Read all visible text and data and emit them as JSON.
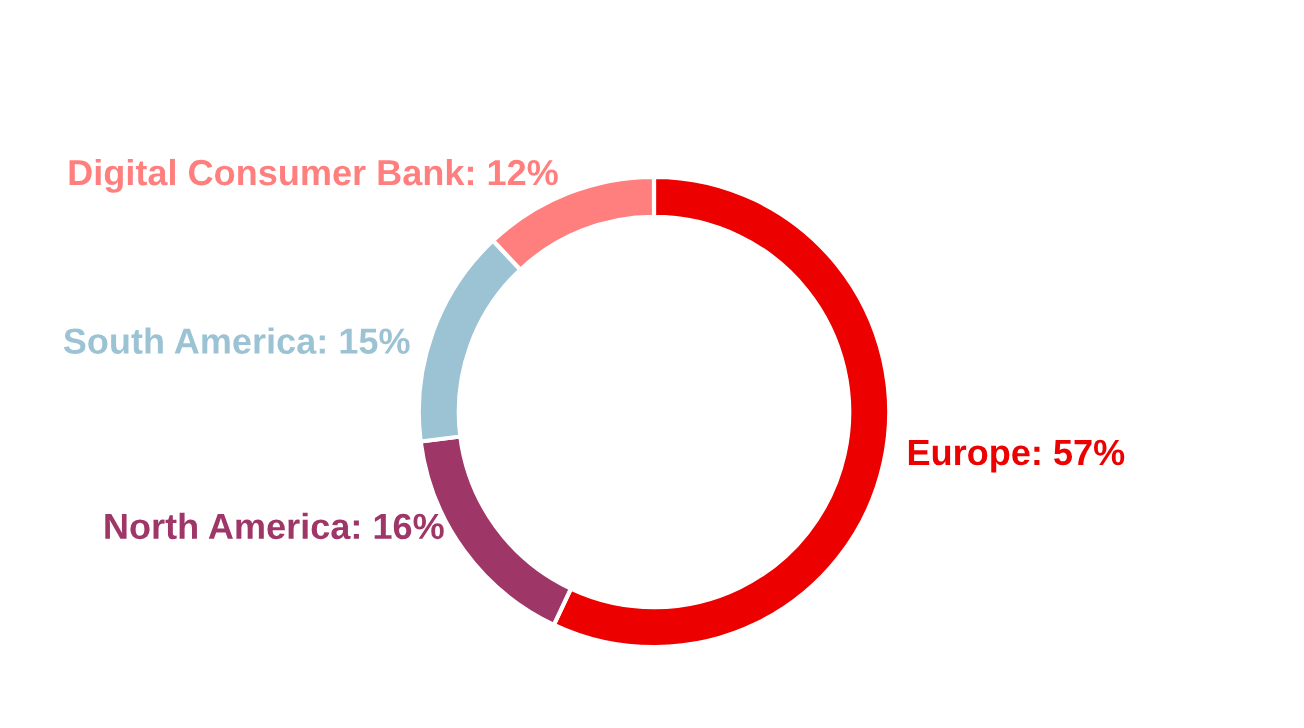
{
  "chart_data": {
    "type": "donut",
    "categories": [
      "Europe",
      "North America",
      "South America",
      "Digital Consumer Bank"
    ],
    "values": [
      57,
      16,
      15,
      12
    ],
    "colors": [
      "#ec0000",
      "#9e3667",
      "#9bc3d3",
      "#ff7f7f"
    ],
    "value_labels": [
      "57%",
      "16%",
      "15%",
      "12%"
    ],
    "legend": false
  }
}
